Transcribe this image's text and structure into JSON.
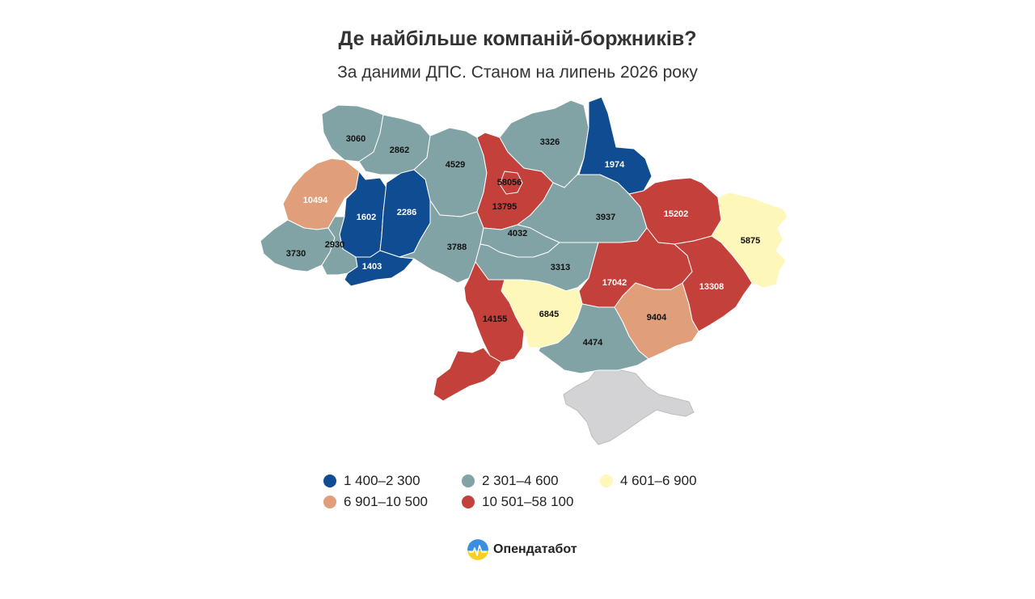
{
  "header": {
    "title": "Де найбільше компаній-боржників?",
    "subtitle": "За даними ДПС. Станом на липень 2026 року"
  },
  "colors": {
    "range_1": "#0f4c91",
    "range_2": "#82a3a5",
    "range_3": "#fdf7b9",
    "range_4": "#e09e7a",
    "range_5": "#c4413b",
    "no_data": "#d3d3d6"
  },
  "legend": {
    "items": [
      {
        "label": "1 400–2 300",
        "color": "#0f4c91"
      },
      {
        "label": "2 301–4 600",
        "color": "#82a3a5"
      },
      {
        "label": "4 601–6 900",
        "color": "#fdf7b9"
      },
      {
        "label": "6 901–10 500",
        "color": "#e09e7a"
      },
      {
        "label": "10 501–58 100",
        "color": "#c4413b"
      }
    ]
  },
  "regions": [
    {
      "id": "volyn",
      "value": "3060"
    },
    {
      "id": "rivne",
      "value": "2862"
    },
    {
      "id": "zhytomyr",
      "value": "4529"
    },
    {
      "id": "kyiv-city",
      "value": "58056"
    },
    {
      "id": "kyiv-oblast",
      "value": "13795"
    },
    {
      "id": "chernihiv",
      "value": "3326"
    },
    {
      "id": "sumy",
      "value": "1974"
    },
    {
      "id": "lviv",
      "value": "10494"
    },
    {
      "id": "ternopil",
      "value": "1602"
    },
    {
      "id": "khmelnytskyi",
      "value": "2286"
    },
    {
      "id": "poltava",
      "value": "3937"
    },
    {
      "id": "kharkiv",
      "value": "15202"
    },
    {
      "id": "luhansk",
      "value": "5875"
    },
    {
      "id": "zakarpattia",
      "value": "3730"
    },
    {
      "id": "ivano-frankivsk",
      "value": "2930"
    },
    {
      "id": "vinnytsia",
      "value": "3788"
    },
    {
      "id": "cherkasy",
      "value": "4032"
    },
    {
      "id": "kirovohrad",
      "value": "3313"
    },
    {
      "id": "chernivtsi",
      "value": "1403"
    },
    {
      "id": "dnipropetrovsk",
      "value": "17042"
    },
    {
      "id": "donetsk",
      "value": "13308"
    },
    {
      "id": "odesa-north",
      "value": "14155"
    },
    {
      "id": "mykolaiv",
      "value": "6845"
    },
    {
      "id": "zaporizhzhia",
      "value": "9404"
    },
    {
      "id": "kherson",
      "value": "4474"
    }
  ],
  "brand": {
    "name": "Опендатабот"
  }
}
